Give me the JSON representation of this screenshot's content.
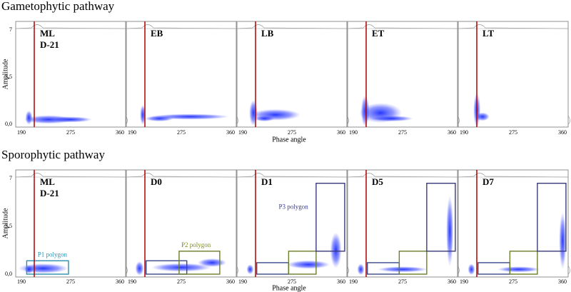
{
  "rows": [
    {
      "title": "Gametophytic pathway",
      "x_label": "Phase angle",
      "y_label": "Amplitude",
      "y_ticks": [
        "7",
        "3,5",
        "0,0"
      ],
      "x_ticks": [
        "190",
        "275",
        "360"
      ],
      "panels": [
        {
          "label": [
            "ML",
            "D-21"
          ]
        },
        {
          "label": [
            "EB"
          ]
        },
        {
          "label": [
            "LB"
          ]
        },
        {
          "label": [
            "ET"
          ]
        },
        {
          "label": [
            "LT"
          ]
        }
      ]
    },
    {
      "title": "Sporophytic pathway",
      "x_label": "Phase angle",
      "y_label": "Amplitude",
      "y_ticks": [
        "7",
        "3,5",
        "0,0"
      ],
      "x_ticks": [
        "190",
        "275",
        "360"
      ],
      "panels": [
        {
          "label": [
            "ML",
            "D-21"
          ],
          "polygon": "P1 polygon"
        },
        {
          "label": [
            "D0"
          ],
          "polygon": "P2 polygon"
        },
        {
          "label": [
            "D1"
          ],
          "polygon": "P3 polygon"
        },
        {
          "label": [
            "D5"
          ]
        },
        {
          "label": [
            "D7"
          ]
        }
      ]
    }
  ]
}
